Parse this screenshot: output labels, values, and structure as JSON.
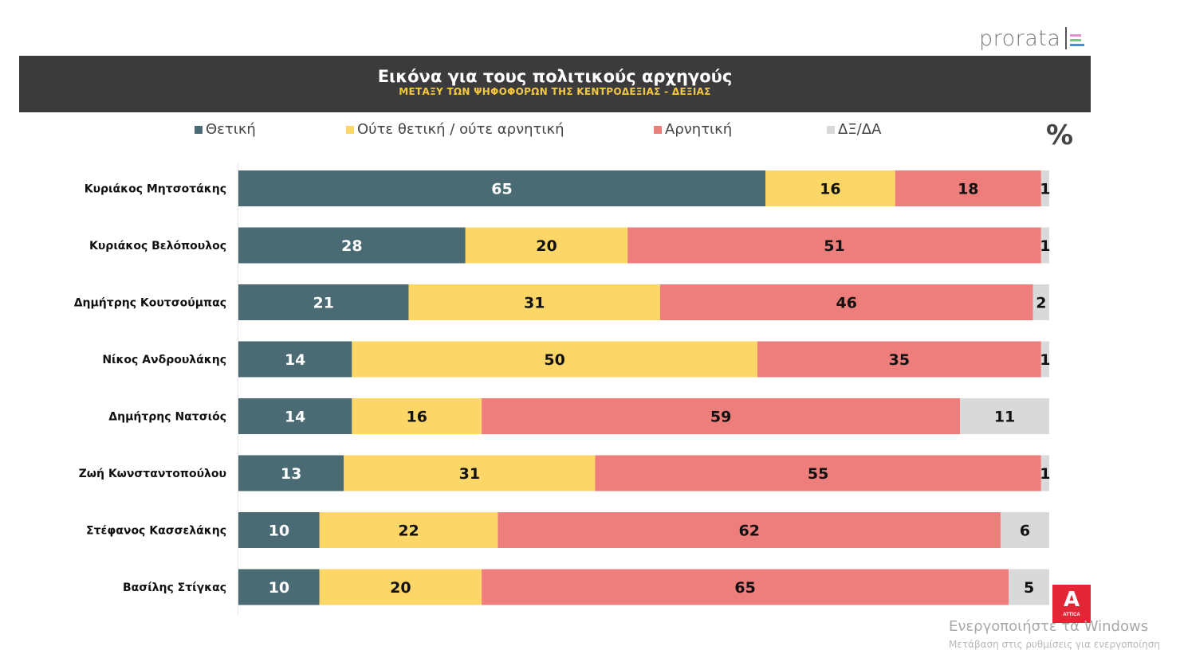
{
  "logo": {
    "text": "prorata",
    "line_colors": [
      "#e58fcf",
      "#7ec48a",
      "#4a8fd6"
    ]
  },
  "header": {
    "title": "Εικόνα για τους πολιτικούς αρχηγούς",
    "subtitle": "ΜΕΤΑΞΥ ΤΩΝ ΨΗΦΟΦΟΡΩΝ ΤΗΣ ΚΕΝΤΡΟΔΕΞΙΑΣ - ΔΕΞΙΑΣ"
  },
  "unit_symbol": "%",
  "chart_data": {
    "type": "bar",
    "orientation": "horizontal",
    "stacked": true,
    "title": "Εικόνα για τους πολιτικούς αρχηγούς",
    "subtitle": "ΜΕΤΑΞΥ ΤΩΝ ΨΗΦΟΦΟΡΩΝ ΤΗΣ ΚΕΝΤΡΟΔΕΞΙΑΣ - ΔΕΞΙΑΣ",
    "xlabel": "",
    "ylabel": "",
    "unit": "%",
    "xlim": [
      0,
      100
    ],
    "grid": false,
    "legend_position": "top",
    "categories": [
      "Κυριάκος Μητσοτάκης",
      "Κυριάκος Βελόπουλος",
      "Δημήτρης Κουτσούμπας",
      "Νίκος Ανδρουλάκης",
      "Δημήτρης Νατσιός",
      "Ζωή Κωνσταντοπούλου",
      "Στέφανος Κασσελάκης",
      "Βασίλης Στίγκας"
    ],
    "series": [
      {
        "name": "Θετική",
        "color": "#4a6b73",
        "label_color": "#ffffff",
        "values": [
          65,
          28,
          21,
          14,
          14,
          13,
          10,
          10
        ]
      },
      {
        "name": "Ούτε θετική / ούτε αρνητική",
        "color": "#fdd668",
        "label_color": "#111111",
        "values": [
          16,
          20,
          31,
          50,
          16,
          31,
          22,
          20
        ]
      },
      {
        "name": "Αρνητική",
        "color": "#ee7e7c",
        "label_color": "#111111",
        "values": [
          18,
          51,
          46,
          35,
          59,
          55,
          62,
          65
        ]
      },
      {
        "name": "ΔΞ/ΔΑ",
        "color": "#d9d9d9",
        "label_color": "#111111",
        "values": [
          1,
          1,
          2,
          1,
          11,
          1,
          6,
          5
        ]
      }
    ]
  },
  "badge": {
    "brand": "ATTICA",
    "letter": "A",
    "color": "#e32636"
  },
  "watermark": {
    "line1": "Ενεργοποιήστε τα Windows",
    "line2": "Μετάβαση στις ρυθμίσεις για ενεργοποίηση"
  }
}
